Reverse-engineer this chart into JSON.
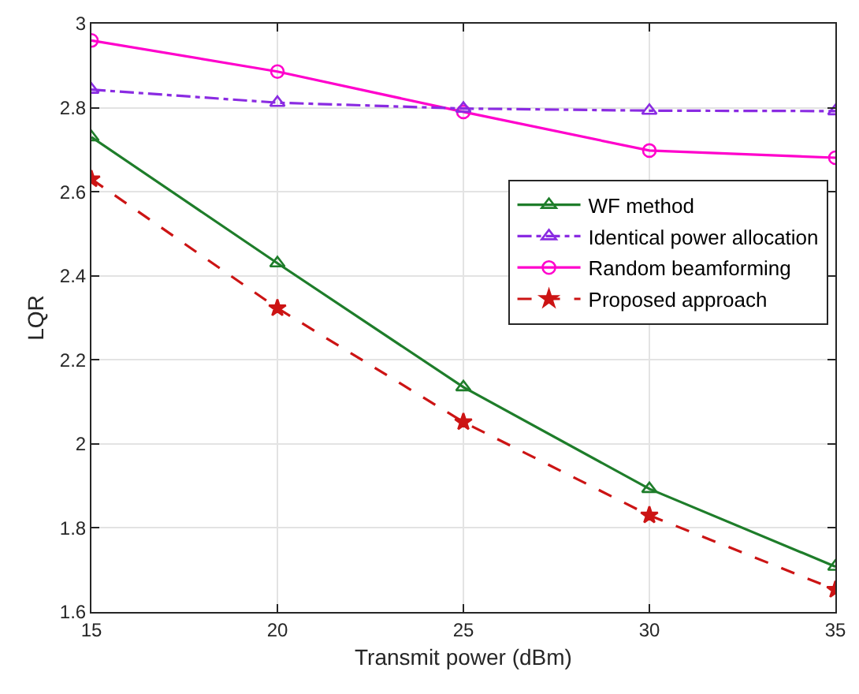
{
  "chart_data": {
    "type": "line",
    "xlabel": "Transmit power (dBm)",
    "ylabel": "LQR",
    "x": [
      15,
      20,
      25,
      30,
      35
    ],
    "xlim": [
      15,
      35
    ],
    "xticks": [
      15,
      20,
      25,
      30,
      35
    ],
    "ylim": [
      1.6,
      3
    ],
    "yticks": [
      1.6,
      1.8,
      {
        "value": 2,
        "label": "2"
      },
      2.2,
      2.4,
      2.6,
      2.8,
      {
        "value": 3,
        "label": "3"
      }
    ],
    "grid": true,
    "legend": "right",
    "series": [
      {
        "name": "WF method",
        "color": "#1e7d2a",
        "marker": "triangle",
        "line_style": "solid",
        "values": [
          2.73,
          2.43,
          2.135,
          1.893,
          1.708
        ]
      },
      {
        "name": "Identical power allocation",
        "color": "#8a2be2",
        "marker": "triangle",
        "line_style": "dashdot",
        "values": [
          2.843,
          2.812,
          2.798,
          2.793,
          2.792
        ]
      },
      {
        "name": "Random beamforming",
        "color": "#ff00cc",
        "marker": "circle",
        "line_style": "solid",
        "values": [
          2.96,
          2.886,
          2.79,
          2.698,
          2.681
        ]
      },
      {
        "name": "Proposed approach",
        "color": "#cc1414",
        "marker": "star",
        "line_style": "dashed",
        "values": [
          2.63,
          2.323,
          2.052,
          1.83,
          1.653
        ]
      }
    ]
  }
}
